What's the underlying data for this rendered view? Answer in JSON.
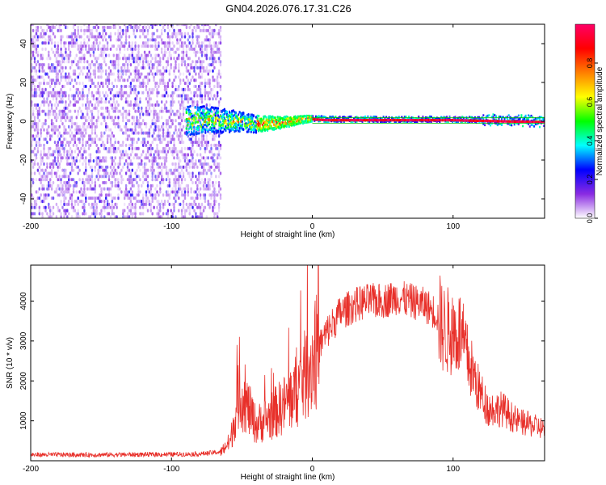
{
  "title": "GN04.2026.076.17.31.C26",
  "chart_data": [
    {
      "type": "heatmap",
      "xlabel": "Height of straight line (km)",
      "ylabel": "Frequency (Hz)",
      "xlim": [
        -200,
        165
      ],
      "ylim": [
        -50,
        50
      ],
      "xticks": [
        -200,
        -100,
        0,
        100
      ],
      "yticks": [
        -40,
        -20,
        0,
        20,
        40
      ],
      "colorbar": {
        "label": "Normalized spectral amplitude",
        "range": [
          0,
          1
        ],
        "ticks": [
          "0.0",
          "0.2",
          "0.4",
          "0.6",
          "0.8"
        ],
        "tick_values": [
          0.0,
          0.2,
          0.4,
          0.6,
          0.8
        ],
        "colors": [
          "#ffffff",
          "#8a2be2",
          "#0000ff",
          "#00ffff",
          "#00ff00",
          "#ffff00",
          "#ff7f00",
          "#ff0000",
          "#ff0066"
        ]
      },
      "regions": [
        {
          "x_range": [
            -200,
            -65
          ],
          "description_values": {
            "freq_spread": [
              -50,
              50
            ],
            "amplitude": [
              0.05,
              0.2
            ]
          }
        },
        {
          "x_range": [
            -90,
            0
          ],
          "description_values": {
            "freq_spread": [
              -8,
              8
            ],
            "amplitude": [
              0.2,
              0.9
            ]
          }
        },
        {
          "x_range": [
            0,
            165
          ],
          "description_values": {
            "freq_center": 0,
            "amplitude": [
              0.8,
              1.0
            ]
          }
        }
      ],
      "ridge": [
        {
          "x": -90,
          "y": 0
        },
        {
          "x": -70,
          "y": 0
        },
        {
          "x": -50,
          "y": -1
        },
        {
          "x": -40,
          "y": -2
        },
        {
          "x": -30,
          "y": -1.5
        },
        {
          "x": -20,
          "y": -1
        },
        {
          "x": -10,
          "y": 0
        },
        {
          "x": 0,
          "y": 1
        },
        {
          "x": 10,
          "y": 0.5
        },
        {
          "x": 50,
          "y": 0.5
        },
        {
          "x": 100,
          "y": 0.5
        },
        {
          "x": 130,
          "y": 0
        },
        {
          "x": 165,
          "y": -0.5
        }
      ]
    },
    {
      "type": "line",
      "xlabel": "Height of straight line (km)",
      "ylabel": "SNR (10 * v/v)",
      "xlim": [
        -200,
        165
      ],
      "ylim": [
        0,
        4900
      ],
      "xticks": [
        -200,
        -100,
        0,
        100
      ],
      "yticks": [
        1000,
        2000,
        3000,
        4000
      ],
      "series": [
        {
          "color": "#e8302a",
          "envelope": [
            {
              "x": -200,
              "y": 150
            },
            {
              "x": -150,
              "y": 150
            },
            {
              "x": -100,
              "y": 160
            },
            {
              "x": -80,
              "y": 170
            },
            {
              "x": -65,
              "y": 220
            },
            {
              "x": -58,
              "y": 500
            },
            {
              "x": -52,
              "y": 1700
            },
            {
              "x": -48,
              "y": 1500
            },
            {
              "x": -40,
              "y": 900
            },
            {
              "x": -30,
              "y": 1100
            },
            {
              "x": -20,
              "y": 1400
            },
            {
              "x": -10,
              "y": 1800
            },
            {
              "x": 0,
              "y": 2500
            },
            {
              "x": 10,
              "y": 3200
            },
            {
              "x": 20,
              "y": 3700
            },
            {
              "x": 30,
              "y": 3900
            },
            {
              "x": 40,
              "y": 4000
            },
            {
              "x": 50,
              "y": 4000
            },
            {
              "x": 60,
              "y": 4100
            },
            {
              "x": 70,
              "y": 4000
            },
            {
              "x": 80,
              "y": 3900
            },
            {
              "x": 88,
              "y": 3700
            },
            {
              "x": 93,
              "y": 3300
            },
            {
              "x": 100,
              "y": 3200
            },
            {
              "x": 105,
              "y": 3200
            },
            {
              "x": 110,
              "y": 2600
            },
            {
              "x": 118,
              "y": 1800
            },
            {
              "x": 125,
              "y": 1300
            },
            {
              "x": 135,
              "y": 1300
            },
            {
              "x": 145,
              "y": 1000
            },
            {
              "x": 155,
              "y": 900
            },
            {
              "x": 165,
              "y": 800
            }
          ]
        }
      ]
    }
  ]
}
